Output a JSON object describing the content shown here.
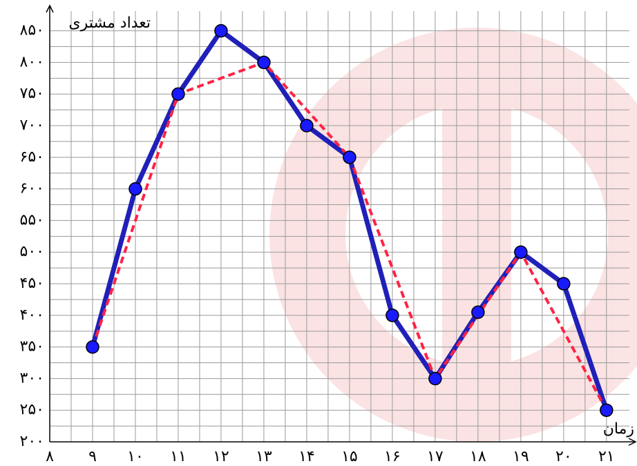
{
  "chart_data": {
    "type": "line",
    "x_label": "زمان",
    "y_label": "تعداد مشتری",
    "xlim": [
      8,
      21.6
    ],
    "ylim": [
      200,
      890
    ],
    "xticks": [
      {
        "value": 8,
        "label": "۸"
      },
      {
        "value": 9,
        "label": "۹"
      },
      {
        "value": 10,
        "label": "۱۰"
      },
      {
        "value": 11,
        "label": "۱۱"
      },
      {
        "value": 12,
        "label": "۱۲"
      },
      {
        "value": 13,
        "label": "۱۳"
      },
      {
        "value": 14,
        "label": "۱۴"
      },
      {
        "value": 15,
        "label": "۱۵"
      },
      {
        "value": 16,
        "label": "۱۶"
      },
      {
        "value": 17,
        "label": "۱۷"
      },
      {
        "value": 18,
        "label": "۱۸"
      },
      {
        "value": 19,
        "label": "۱۹"
      },
      {
        "value": 20,
        "label": "۲۰"
      },
      {
        "value": 21,
        "label": "۲۱"
      }
    ],
    "yticks": [
      {
        "value": 200,
        "label": "۲۰۰"
      },
      {
        "value": 250,
        "label": "۲۵۰"
      },
      {
        "value": 300,
        "label": "۳۰۰"
      },
      {
        "value": 350,
        "label": "۳۵۰"
      },
      {
        "value": 400,
        "label": "۴۰۰"
      },
      {
        "value": 450,
        "label": "۴۵۰"
      },
      {
        "value": 500,
        "label": "۵۰۰"
      },
      {
        "value": 550,
        "label": "۵۵۰"
      },
      {
        "value": 600,
        "label": "۶۰۰"
      },
      {
        "value": 650,
        "label": "۶۵۰"
      },
      {
        "value": 700,
        "label": "۷۰۰"
      },
      {
        "value": 750,
        "label": "۷۵۰"
      },
      {
        "value": 800,
        "label": "۸۰۰"
      },
      {
        "value": 850,
        "label": "۸۵۰"
      }
    ],
    "grid": true,
    "series": [
      {
        "color": "#2020b8",
        "style": "solid",
        "markers": true,
        "x": [
          9,
          10,
          11,
          12,
          13,
          14,
          15,
          16,
          17,
          18,
          19,
          20,
          21
        ],
        "values": [
          350,
          600,
          750,
          850,
          800,
          700,
          650,
          400,
          300,
          405,
          500,
          450,
          250
        ]
      },
      {
        "color": "#ff2244",
        "style": "dashed",
        "markers": false,
        "x": [
          9,
          11,
          13,
          15,
          17,
          19,
          21
        ],
        "values": [
          350,
          750,
          800,
          650,
          300,
          500,
          250
        ]
      }
    ]
  }
}
